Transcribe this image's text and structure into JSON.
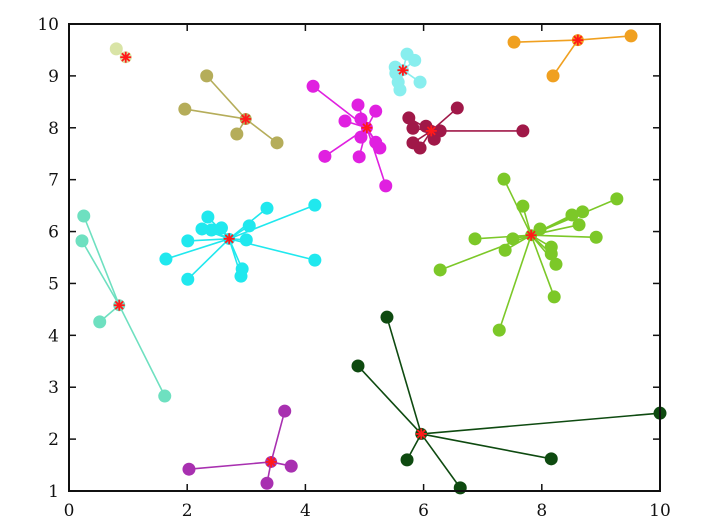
{
  "chart_data": {
    "type": "scatter",
    "title": "",
    "xlabel": "",
    "ylabel": "",
    "xlim": [
      0,
      10
    ],
    "ylim": [
      1,
      10
    ],
    "xticks": [
      "0",
      "2",
      "4",
      "6",
      "8",
      "10"
    ],
    "yticks": [
      "1",
      "2",
      "3",
      "4",
      "5",
      "6",
      "7",
      "8",
      "9",
      "10"
    ],
    "grid": false,
    "center_marker_color": "#ff1a1a",
    "clusters": [
      {
        "color": "#d9e4a6",
        "center": [
          0.96,
          9.36
        ],
        "points": [
          [
            0.8,
            9.52
          ]
        ]
      },
      {
        "color": "#b5ad5a",
        "center": [
          2.99,
          8.17
        ],
        "points": [
          [
            2.33,
            9.0
          ],
          [
            1.96,
            8.36
          ],
          [
            2.84,
            7.88
          ],
          [
            3.52,
            7.71
          ]
        ]
      },
      {
        "color": "#e020e0",
        "center": [
          5.04,
          8.0
        ],
        "points": [
          [
            4.13,
            8.8
          ],
          [
            4.89,
            8.44
          ],
          [
            5.19,
            8.32
          ],
          [
            4.67,
            8.13
          ],
          [
            4.94,
            8.17
          ],
          [
            4.94,
            7.82
          ],
          [
            5.19,
            7.72
          ],
          [
            5.26,
            7.61
          ],
          [
            4.33,
            7.45
          ],
          [
            4.91,
            7.44
          ],
          [
            5.36,
            6.88
          ]
        ]
      },
      {
        "color": "#88eeee",
        "center": [
          5.65,
          9.11
        ],
        "points": [
          [
            5.72,
            9.42
          ],
          [
            5.85,
            9.3
          ],
          [
            5.53,
            9.05
          ],
          [
            5.57,
            8.88
          ],
          [
            5.6,
            8.73
          ],
          [
            5.94,
            8.88
          ],
          [
            5.52,
            9.17
          ]
        ]
      },
      {
        "color": "#a01848",
        "center": [
          6.13,
          7.94
        ],
        "points": [
          [
            6.57,
            8.38
          ],
          [
            5.75,
            8.19
          ],
          [
            5.82,
            7.99
          ],
          [
            6.04,
            8.03
          ],
          [
            6.28,
            7.94
          ],
          [
            7.68,
            7.94
          ],
          [
            5.82,
            7.71
          ],
          [
            5.94,
            7.61
          ],
          [
            6.18,
            7.78
          ]
        ]
      },
      {
        "color": "#f0a020",
        "center": [
          8.61,
          9.69
        ],
        "points": [
          [
            7.53,
            9.65
          ],
          [
            9.51,
            9.77
          ],
          [
            8.19,
            9.0
          ]
        ]
      },
      {
        "color": "#7cc828",
        "center": [
          7.82,
          5.93
        ],
        "points": [
          [
            7.36,
            7.01
          ],
          [
            7.68,
            6.49
          ],
          [
            6.87,
            5.86
          ],
          [
            7.51,
            5.86
          ],
          [
            7.97,
            6.05
          ],
          [
            8.51,
            6.32
          ],
          [
            8.69,
            6.38
          ],
          [
            8.63,
            6.13
          ],
          [
            9.27,
            6.63
          ],
          [
            8.92,
            5.89
          ],
          [
            7.38,
            5.64
          ],
          [
            8.16,
            5.7
          ],
          [
            8.16,
            5.57
          ],
          [
            8.24,
            5.37
          ],
          [
            6.28,
            5.26
          ],
          [
            8.21,
            4.74
          ],
          [
            7.28,
            4.1
          ]
        ]
      },
      {
        "color": "#20e8ee",
        "center": [
          2.71,
          5.86
        ],
        "points": [
          [
            1.64,
            5.47
          ],
          [
            2.01,
            5.82
          ],
          [
            2.01,
            5.08
          ],
          [
            2.35,
            6.28
          ],
          [
            2.25,
            6.05
          ],
          [
            2.41,
            6.03
          ],
          [
            2.58,
            6.07
          ],
          [
            3.05,
            6.11
          ],
          [
            3.0,
            5.84
          ],
          [
            3.35,
            6.45
          ],
          [
            4.16,
            6.51
          ],
          [
            4.16,
            5.45
          ],
          [
            2.93,
            5.28
          ],
          [
            2.91,
            5.14
          ]
        ]
      },
      {
        "color": "#6ee0c0",
        "center": [
          0.85,
          4.58
        ],
        "points": [
          [
            0.25,
            6.3
          ],
          [
            0.22,
            5.82
          ],
          [
            0.52,
            4.26
          ],
          [
            1.62,
            2.83
          ]
        ]
      },
      {
        "color": "#a830b0",
        "center": [
          3.42,
          1.56
        ],
        "points": [
          [
            3.65,
            2.54
          ],
          [
            2.03,
            1.42
          ],
          [
            3.76,
            1.48
          ],
          [
            3.35,
            1.15
          ]
        ]
      },
      {
        "color": "#0e4a10",
        "center": [
          5.96,
          2.1
        ],
        "points": [
          [
            5.38,
            4.35
          ],
          [
            4.89,
            3.41
          ],
          [
            5.72,
            1.6
          ],
          [
            6.62,
            1.06
          ],
          [
            8.16,
            1.62
          ],
          [
            10.0,
            2.5
          ]
        ]
      }
    ]
  }
}
